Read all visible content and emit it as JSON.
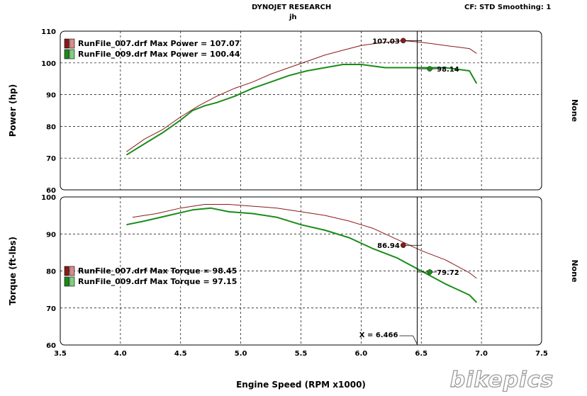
{
  "header": {
    "title": "DYNOJET RESEARCH",
    "subtitle": "jh",
    "settings": "CF: STD  Smoothing: 1"
  },
  "chart_data": [
    {
      "type": "line",
      "ylabel": "Power (hp)",
      "right_label": "None",
      "xlim": [
        3.5,
        7.5
      ],
      "ylim": [
        60,
        110
      ],
      "yticks": [
        60,
        70,
        80,
        90,
        100,
        110
      ],
      "grid": true,
      "legend_position": "top-left",
      "series": [
        {
          "name": "RunFile_007.drf Max Power = 107.07",
          "color": "#8b1a1a",
          "x": [
            4.05,
            4.2,
            4.35,
            4.5,
            4.65,
            4.8,
            4.95,
            5.1,
            5.25,
            5.4,
            5.55,
            5.7,
            5.85,
            6.0,
            6.1,
            6.2,
            6.35,
            6.5,
            6.6,
            6.7,
            6.8,
            6.9,
            6.96
          ],
          "y": [
            72,
            76,
            79,
            83,
            86.5,
            89.5,
            92,
            94,
            96.5,
            98.5,
            100.5,
            102.5,
            104,
            105.5,
            106,
            106.5,
            107,
            106.5,
            106,
            105.5,
            105,
            104.5,
            103
          ]
        },
        {
          "name": "RunFile_009.drf Max Power = 100.44",
          "color": "#1a8c1a",
          "x": [
            4.05,
            4.2,
            4.35,
            4.5,
            4.6,
            4.7,
            4.8,
            4.95,
            5.1,
            5.25,
            5.4,
            5.55,
            5.7,
            5.85,
            6.0,
            6.1,
            6.2,
            6.35,
            6.5,
            6.6,
            6.7,
            6.8,
            6.9,
            6.96
          ],
          "y": [
            71,
            74.5,
            78,
            82,
            85,
            86.5,
            87.5,
            89.5,
            92,
            94,
            96,
            97.5,
            98.5,
            99.5,
            99.5,
            99,
            98.5,
            98.5,
            98.5,
            98.5,
            98.5,
            98,
            97.5,
            93.5
          ]
        }
      ],
      "markers": [
        {
          "x": 6.35,
          "y": 107.03,
          "label": "107.03",
          "series": 0
        },
        {
          "x": 6.57,
          "y": 98.14,
          "label": "98.14",
          "series": 1
        }
      ]
    },
    {
      "type": "line",
      "ylabel": "Torque (ft-lbs)",
      "xlabel": "Engine Speed (RPM x1000)",
      "right_label": "None",
      "xlim": [
        3.5,
        7.5
      ],
      "ylim": [
        60,
        100
      ],
      "yticks": [
        60,
        70,
        80,
        90,
        100
      ],
      "xticks": [
        3.5,
        4.0,
        4.5,
        5.0,
        5.5,
        6.0,
        6.5,
        7.0,
        7.5
      ],
      "xtick_labels": [
        "3.5",
        "4.0",
        "4.5",
        "5.0",
        "5.5",
        "6.0",
        "6.5",
        "7.0",
        "7.5"
      ],
      "grid": true,
      "legend_position": "lower-left",
      "series": [
        {
          "name": "RunFile_007.drf Max Torque = 98.45",
          "color": "#8b1a1a",
          "x": [
            4.1,
            4.3,
            4.5,
            4.7,
            4.9,
            5.1,
            5.3,
            5.5,
            5.7,
            5.9,
            6.1,
            6.3,
            6.5,
            6.7,
            6.9,
            6.96
          ],
          "y": [
            94.5,
            95.5,
            97,
            98,
            98,
            97.5,
            97,
            96,
            95,
            93.5,
            91.5,
            88.5,
            85.5,
            83,
            79.5,
            78
          ]
        },
        {
          "name": "RunFile_009.drf Max Torque = 97.15",
          "color": "#1a8c1a",
          "x": [
            4.05,
            4.2,
            4.4,
            4.6,
            4.75,
            4.9,
            5.1,
            5.3,
            5.5,
            5.7,
            5.9,
            6.1,
            6.3,
            6.5,
            6.7,
            6.9,
            6.96
          ],
          "y": [
            92.5,
            93.5,
            95,
            96.5,
            97,
            96,
            95.5,
            94.5,
            92.5,
            91,
            89,
            86,
            83.5,
            80,
            76.5,
            73.5,
            71.5
          ]
        }
      ],
      "markers": [
        {
          "x": 6.35,
          "y": 86.94,
          "label": "86.94",
          "series": 0
        },
        {
          "x": 6.57,
          "y": 79.72,
          "label": "79.72",
          "series": 1
        }
      ],
      "cursor": {
        "x": 6.466,
        "label": "X = 6.466"
      }
    }
  ],
  "watermark": {
    "text": "bikepics"
  }
}
